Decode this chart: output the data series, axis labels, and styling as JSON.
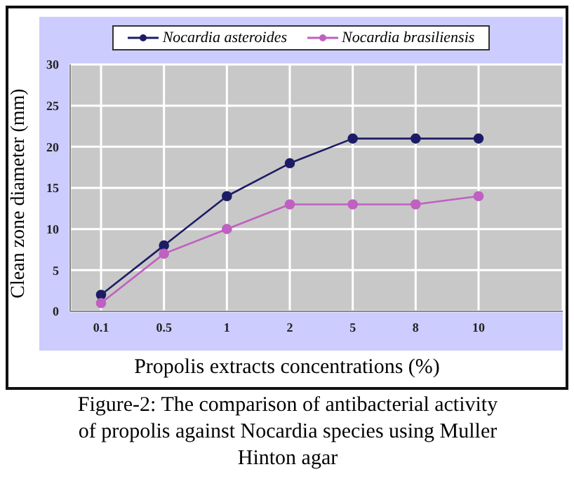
{
  "chart_data": {
    "type": "line",
    "xlabel": "Propolis extracts concentrations (%)",
    "ylabel": "Clean zone diameter (mm)",
    "categories": [
      "0.1",
      "0.5",
      "1",
      "2",
      "5",
      "8",
      "10"
    ],
    "series": [
      {
        "name": "Nocardia asteroides",
        "color": "#1c1c66",
        "values": [
          2,
          8,
          14,
          18,
          21,
          21,
          21
        ]
      },
      {
        "name": "Nocardia brasiliensis",
        "color": "#c060c0",
        "values": [
          1,
          7,
          10,
          13,
          13,
          13,
          14
        ]
      }
    ],
    "ylim": [
      0,
      30
    ],
    "yticks": [
      0,
      5,
      10,
      15,
      20,
      25,
      30
    ],
    "grid": true,
    "legend": "top",
    "marker": "circle",
    "line_style": "solid",
    "annotations": [
      "Figure-2: The comparison of antibacterial activity of propolis against Nocardia species using Muller Hinton agar"
    ]
  }
}
